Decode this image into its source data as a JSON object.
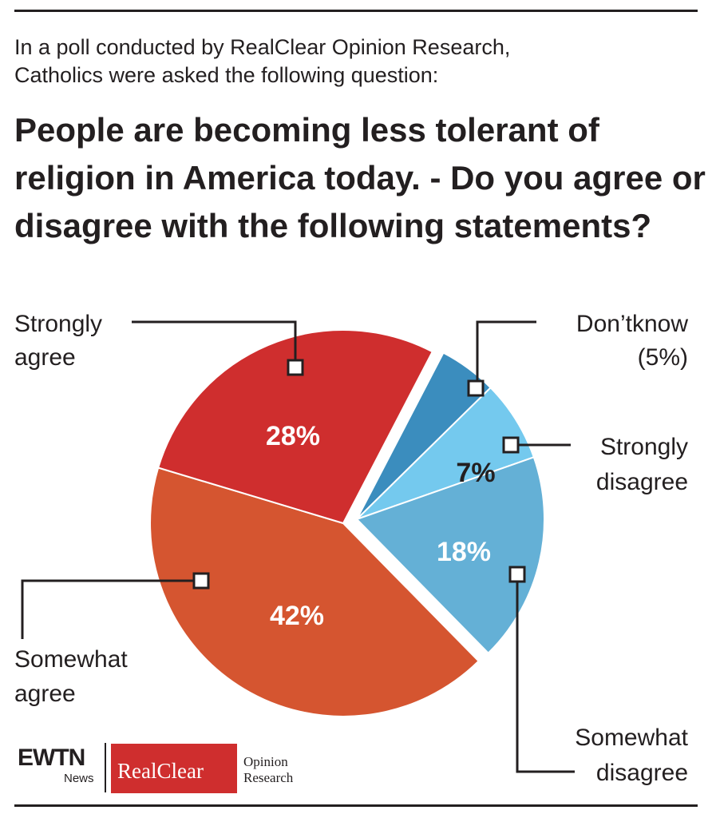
{
  "intro": {
    "line1": "In a poll conducted by RealClear Opinion Research,",
    "line2": "Catholics were asked the following question:"
  },
  "question": "People are becoming less tolerant of religion in America today. - Do you agree or disagree with the following statements?",
  "colors": {
    "strongly_agree": "#cf2e2e",
    "somewhat_agree": "#d55530",
    "dont_know": "#3b8dbe",
    "strongly_disagree": "#74c9ee",
    "somewhat_disagree": "#64b0d6",
    "text": "#231f20"
  },
  "chart_data": {
    "type": "pie",
    "slices": [
      {
        "key": "strongly_agree",
        "label": [
          "Strongly",
          "agree"
        ],
        "value": 28,
        "value_label": "28%"
      },
      {
        "key": "somewhat_agree",
        "label": [
          "Somewhat",
          "agree"
        ],
        "value": 42,
        "value_label": "42%"
      },
      {
        "key": "somewhat_disagree",
        "label": [
          "Somewhat",
          "disagree"
        ],
        "value": 18,
        "value_label": "18%"
      },
      {
        "key": "strongly_disagree",
        "label": [
          "Strongly",
          "disagree"
        ],
        "value": 7,
        "value_label": "7%"
      },
      {
        "key": "dont_know",
        "label": [
          "Don’tknow",
          "(5%)"
        ],
        "value": 5,
        "value_label": ""
      }
    ],
    "exploded": [
      "somewhat_disagree",
      "strongly_disagree",
      "dont_know"
    ]
  },
  "logos": {
    "ewtn": "EWTN",
    "news": "News",
    "realclear": "RealClear",
    "opinion": "Opinion",
    "research": "Research"
  }
}
